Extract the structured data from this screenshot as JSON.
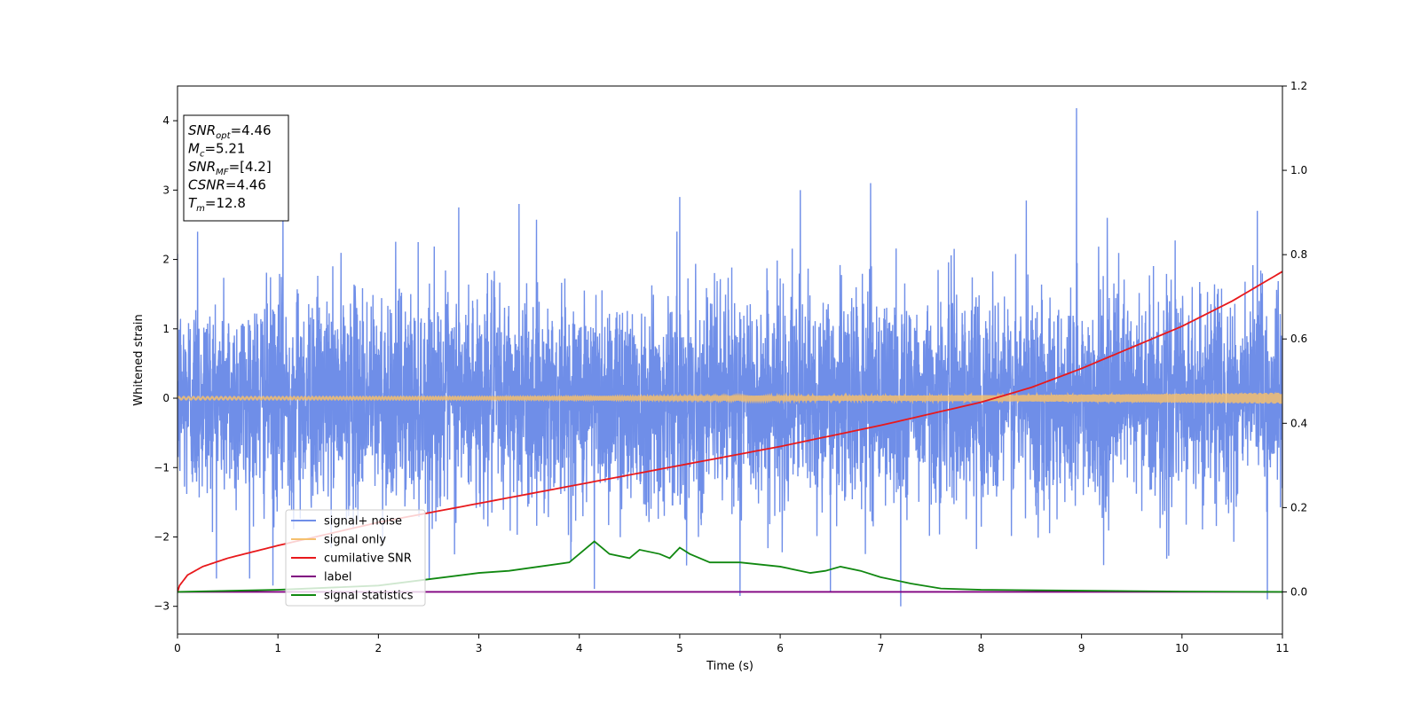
{
  "chart_data": {
    "type": "line",
    "xlabel": "Time (s)",
    "ylabel": "Whitened strain",
    "xlim": [
      0,
      11
    ],
    "ylim": [
      -3.4,
      4.5
    ],
    "y2lim": [
      -0.1,
      1.2
    ],
    "x_ticks": [
      0,
      1,
      2,
      3,
      4,
      5,
      6,
      7,
      8,
      9,
      10,
      11
    ],
    "y_ticks": [
      -3,
      -2,
      -1,
      0,
      1,
      2,
      3,
      4
    ],
    "y2_ticks": [
      0.0,
      0.2,
      0.4,
      0.6,
      0.8,
      1.0,
      1.2
    ],
    "grid": false,
    "legend_position": "lower-left",
    "info_box": {
      "lines": [
        {
          "base": "SNR",
          "sub": "opt",
          "value": "=4.46"
        },
        {
          "base": "M",
          "sub": "c",
          "value": "=5.21"
        },
        {
          "base": "SNR",
          "sub": "MF",
          "value": "=[4.2]"
        },
        {
          "base": "CSNR",
          "sub": "",
          "value": "=4.46"
        },
        {
          "base": "T",
          "sub": "m",
          "value": "=12.8"
        }
      ]
    },
    "series": [
      {
        "name": "signal+ noise",
        "color": "#6f8ee8",
        "axis": "left",
        "kind": "noise",
        "sigma": 0.75,
        "extremes": [
          {
            "x": 0.2,
            "y": 2.4
          },
          {
            "x": 1.05,
            "y": 2.75
          },
          {
            "x": 2.8,
            "y": 2.75
          },
          {
            "x": 3.4,
            "y": 2.8
          },
          {
            "x": 5.0,
            "y": 2.9
          },
          {
            "x": 6.2,
            "y": 3.0
          },
          {
            "x": 6.9,
            "y": 3.1
          },
          {
            "x": 8.45,
            "y": 2.85
          },
          {
            "x": 8.95,
            "y": 4.18
          },
          {
            "x": 10.75,
            "y": 2.7
          },
          {
            "x": 0.95,
            "y": -2.7
          },
          {
            "x": 4.15,
            "y": -2.75
          },
          {
            "x": 5.6,
            "y": -2.85
          },
          {
            "x": 6.5,
            "y": -2.8
          },
          {
            "x": 7.2,
            "y": -3.0
          },
          {
            "x": 10.85,
            "y": -2.9
          }
        ]
      },
      {
        "name": "signal only",
        "color": "#f5c06e",
        "axis": "left",
        "kind": "chirp",
        "amplitude_start": 0.02,
        "amplitude_end": 0.08
      },
      {
        "name": "cumilative SNR",
        "color": "#e8191c",
        "axis": "right",
        "x": [
          0,
          0.02,
          0.1,
          0.25,
          0.5,
          1,
          2,
          3,
          4,
          5,
          6,
          7,
          8,
          8.5,
          9,
          9.5,
          10,
          10.5,
          11
        ],
        "values": [
          0.0,
          0.015,
          0.04,
          0.06,
          0.08,
          0.11,
          0.165,
          0.21,
          0.255,
          0.3,
          0.345,
          0.395,
          0.45,
          0.485,
          0.53,
          0.58,
          0.63,
          0.69,
          0.76
        ]
      },
      {
        "name": "label",
        "color": "#800080",
        "axis": "right",
        "x": [
          0,
          11
        ],
        "values": [
          0.0,
          0.0
        ]
      },
      {
        "name": "signal statistics",
        "color": "#118811",
        "axis": "right",
        "x": [
          0,
          1,
          2,
          2.5,
          3,
          3.3,
          3.6,
          3.9,
          4.0,
          4.15,
          4.3,
          4.5,
          4.6,
          4.8,
          4.9,
          5.0,
          5.1,
          5.3,
          5.6,
          5.8,
          6.0,
          6.3,
          6.45,
          6.6,
          6.8,
          7.0,
          7.3,
          7.6,
          8.0,
          9.0,
          10.0,
          11.0
        ],
        "values": [
          0.0,
          0.005,
          0.015,
          0.03,
          0.045,
          0.05,
          0.06,
          0.07,
          0.09,
          0.12,
          0.09,
          0.08,
          0.1,
          0.09,
          0.08,
          0.105,
          0.09,
          0.07,
          0.07,
          0.065,
          0.06,
          0.045,
          0.05,
          0.06,
          0.05,
          0.035,
          0.02,
          0.008,
          0.005,
          0.003,
          0.001,
          0.0
        ]
      }
    ]
  }
}
